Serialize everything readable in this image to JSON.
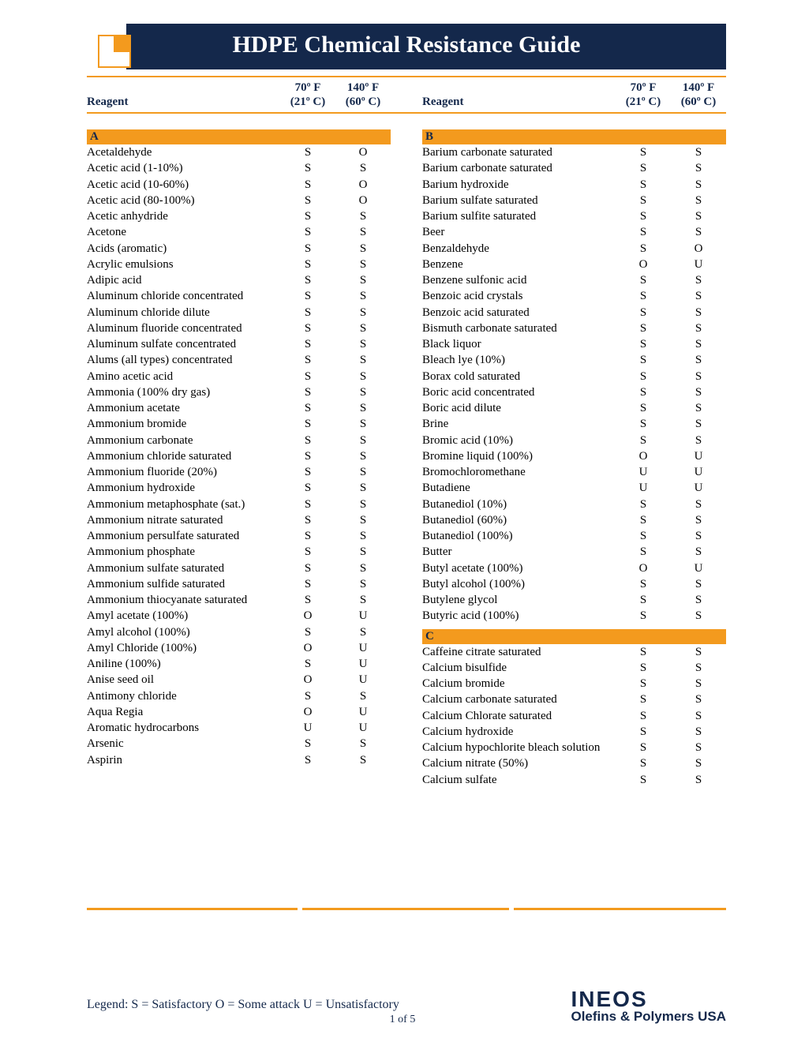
{
  "title": "HDPE Chemical Resistance Guide",
  "headers": {
    "reagent": "Reagent",
    "t1_top": "70º F",
    "t1_bot": "(21º C)",
    "t2_top": "140º F",
    "t2_bot": "(60º C)"
  },
  "sections": {
    "left": [
      {
        "letter": "A",
        "rows": [
          [
            "Acetaldehyde",
            "S",
            "O"
          ],
          [
            "Acetic acid (1-10%)",
            "S",
            "S"
          ],
          [
            "Acetic acid (10-60%)",
            "S",
            "O"
          ],
          [
            "Acetic acid (80-100%)",
            "S",
            "O"
          ],
          [
            "Acetic anhydride",
            "S",
            "S"
          ],
          [
            "Acetone",
            "S",
            "S"
          ],
          [
            "Acids (aromatic)",
            "S",
            "S"
          ],
          [
            "Acrylic emulsions",
            "S",
            "S"
          ],
          [
            "Adipic acid",
            "S",
            "S"
          ],
          [
            "Aluminum chloride concentrated",
            "S",
            "S"
          ],
          [
            "Aluminum chloride dilute",
            "S",
            "S"
          ],
          [
            "Aluminum fluoride concentrated",
            "S",
            "S"
          ],
          [
            "Aluminum sulfate concentrated",
            "S",
            "S"
          ],
          [
            "Alums (all types) concentrated",
            "S",
            "S"
          ],
          [
            "Amino acetic acid",
            "S",
            "S"
          ],
          [
            "Ammonia (100% dry gas)",
            "S",
            "S"
          ],
          [
            "Ammonium acetate",
            "S",
            "S"
          ],
          [
            "Ammonium bromide",
            "S",
            "S"
          ],
          [
            "Ammonium carbonate",
            "S",
            "S"
          ],
          [
            "Ammonium chloride saturated",
            "S",
            "S"
          ],
          [
            "Ammonium fluoride (20%)",
            "S",
            "S"
          ],
          [
            "Ammonium hydroxide",
            "S",
            "S"
          ],
          [
            "Ammonium metaphosphate (sat.)",
            "S",
            "S"
          ],
          [
            "Ammonium nitrate saturated",
            "S",
            "S"
          ],
          [
            "Ammonium persulfate saturated",
            "S",
            "S"
          ],
          [
            "Ammonium phosphate",
            "S",
            "S"
          ],
          [
            "Ammonium sulfate saturated",
            "S",
            "S"
          ],
          [
            "Ammonium sulfide saturated",
            "S",
            "S"
          ],
          [
            "Ammonium thiocyanate saturated",
            "S",
            "S"
          ],
          [
            "Amyl acetate (100%)",
            "O",
            "U"
          ],
          [
            "Amyl alcohol (100%)",
            "S",
            "S"
          ],
          [
            "Amyl Chloride (100%)",
            "O",
            "U"
          ],
          [
            "Aniline (100%)",
            "S",
            "U"
          ],
          [
            "Anise seed oil",
            "O",
            "U"
          ],
          [
            "Antimony chloride",
            "S",
            "S"
          ],
          [
            "Aqua Regia",
            "O",
            "U"
          ],
          [
            "Aromatic hydrocarbons",
            "U",
            "U"
          ],
          [
            "Arsenic",
            "S",
            "S"
          ],
          [
            "Aspirin",
            "S",
            "S"
          ]
        ]
      }
    ],
    "right": [
      {
        "letter": "B",
        "rows": [
          [
            "Barium carbonate saturated",
            "S",
            "S"
          ],
          [
            "Barium carbonate saturated",
            "S",
            "S"
          ],
          [
            "Barium hydroxide",
            "S",
            "S"
          ],
          [
            "Barium sulfate saturated",
            "S",
            "S"
          ],
          [
            "Barium sulfite saturated",
            "S",
            "S"
          ],
          [
            "Beer",
            "S",
            "S"
          ],
          [
            "Benzaldehyde",
            "S",
            "O"
          ],
          [
            "Benzene",
            "O",
            "U"
          ],
          [
            "Benzene sulfonic acid",
            "S",
            "S"
          ],
          [
            "Benzoic acid crystals",
            "S",
            "S"
          ],
          [
            "Benzoic acid saturated",
            "S",
            "S"
          ],
          [
            "Bismuth carbonate saturated",
            "S",
            "S"
          ],
          [
            "Black liquor",
            "S",
            "S"
          ],
          [
            "Bleach lye (10%)",
            "S",
            "S"
          ],
          [
            "Borax cold saturated",
            "S",
            "S"
          ],
          [
            "Boric acid concentrated",
            "S",
            "S"
          ],
          [
            "Boric acid dilute",
            "S",
            "S"
          ],
          [
            "Brine",
            "S",
            "S"
          ],
          [
            "Bromic acid (10%)",
            "S",
            "S"
          ],
          [
            "Bromine liquid (100%)",
            "O",
            "U"
          ],
          [
            "Bromochloromethane",
            "U",
            "U"
          ],
          [
            "Butadiene",
            "U",
            "U"
          ],
          [
            "Butanediol (10%)",
            "S",
            "S"
          ],
          [
            "Butanediol (60%)",
            "S",
            "S"
          ],
          [
            "Butanediol (100%)",
            "S",
            "S"
          ],
          [
            "Butter",
            "S",
            "S"
          ],
          [
            "Butyl acetate (100%)",
            "O",
            "U"
          ],
          [
            "Butyl alcohol (100%)",
            "S",
            "S"
          ],
          [
            "Butylene glycol",
            "S",
            "S"
          ],
          [
            "Butyric acid (100%)",
            "S",
            "S"
          ]
        ]
      },
      {
        "letter": "C",
        "rows": [
          [
            "Caffeine citrate saturated",
            "S",
            "S"
          ],
          [
            "Calcium bisulfide",
            "S",
            "S"
          ],
          [
            "Calcium bromide",
            "S",
            "S"
          ],
          [
            "Calcium carbonate saturated",
            "S",
            "S"
          ],
          [
            "Calcium Chlorate saturated",
            "S",
            "S"
          ],
          [
            "Calcium hydroxide",
            "S",
            "S"
          ],
          [
            "Calcium hypochlorite bleach solution",
            "S",
            "S"
          ],
          [
            "Calcium nitrate (50%)",
            "S",
            "S"
          ],
          [
            "Calcium sulfate",
            "S",
            "S"
          ]
        ]
      }
    ]
  },
  "legend": "Legend:   S = Satisfactory    O = Some attack    U = Unsatisfactory",
  "page": "1 of 5",
  "logo_top": "INEOS",
  "logo_bot": "Olefins & Polymers USA"
}
